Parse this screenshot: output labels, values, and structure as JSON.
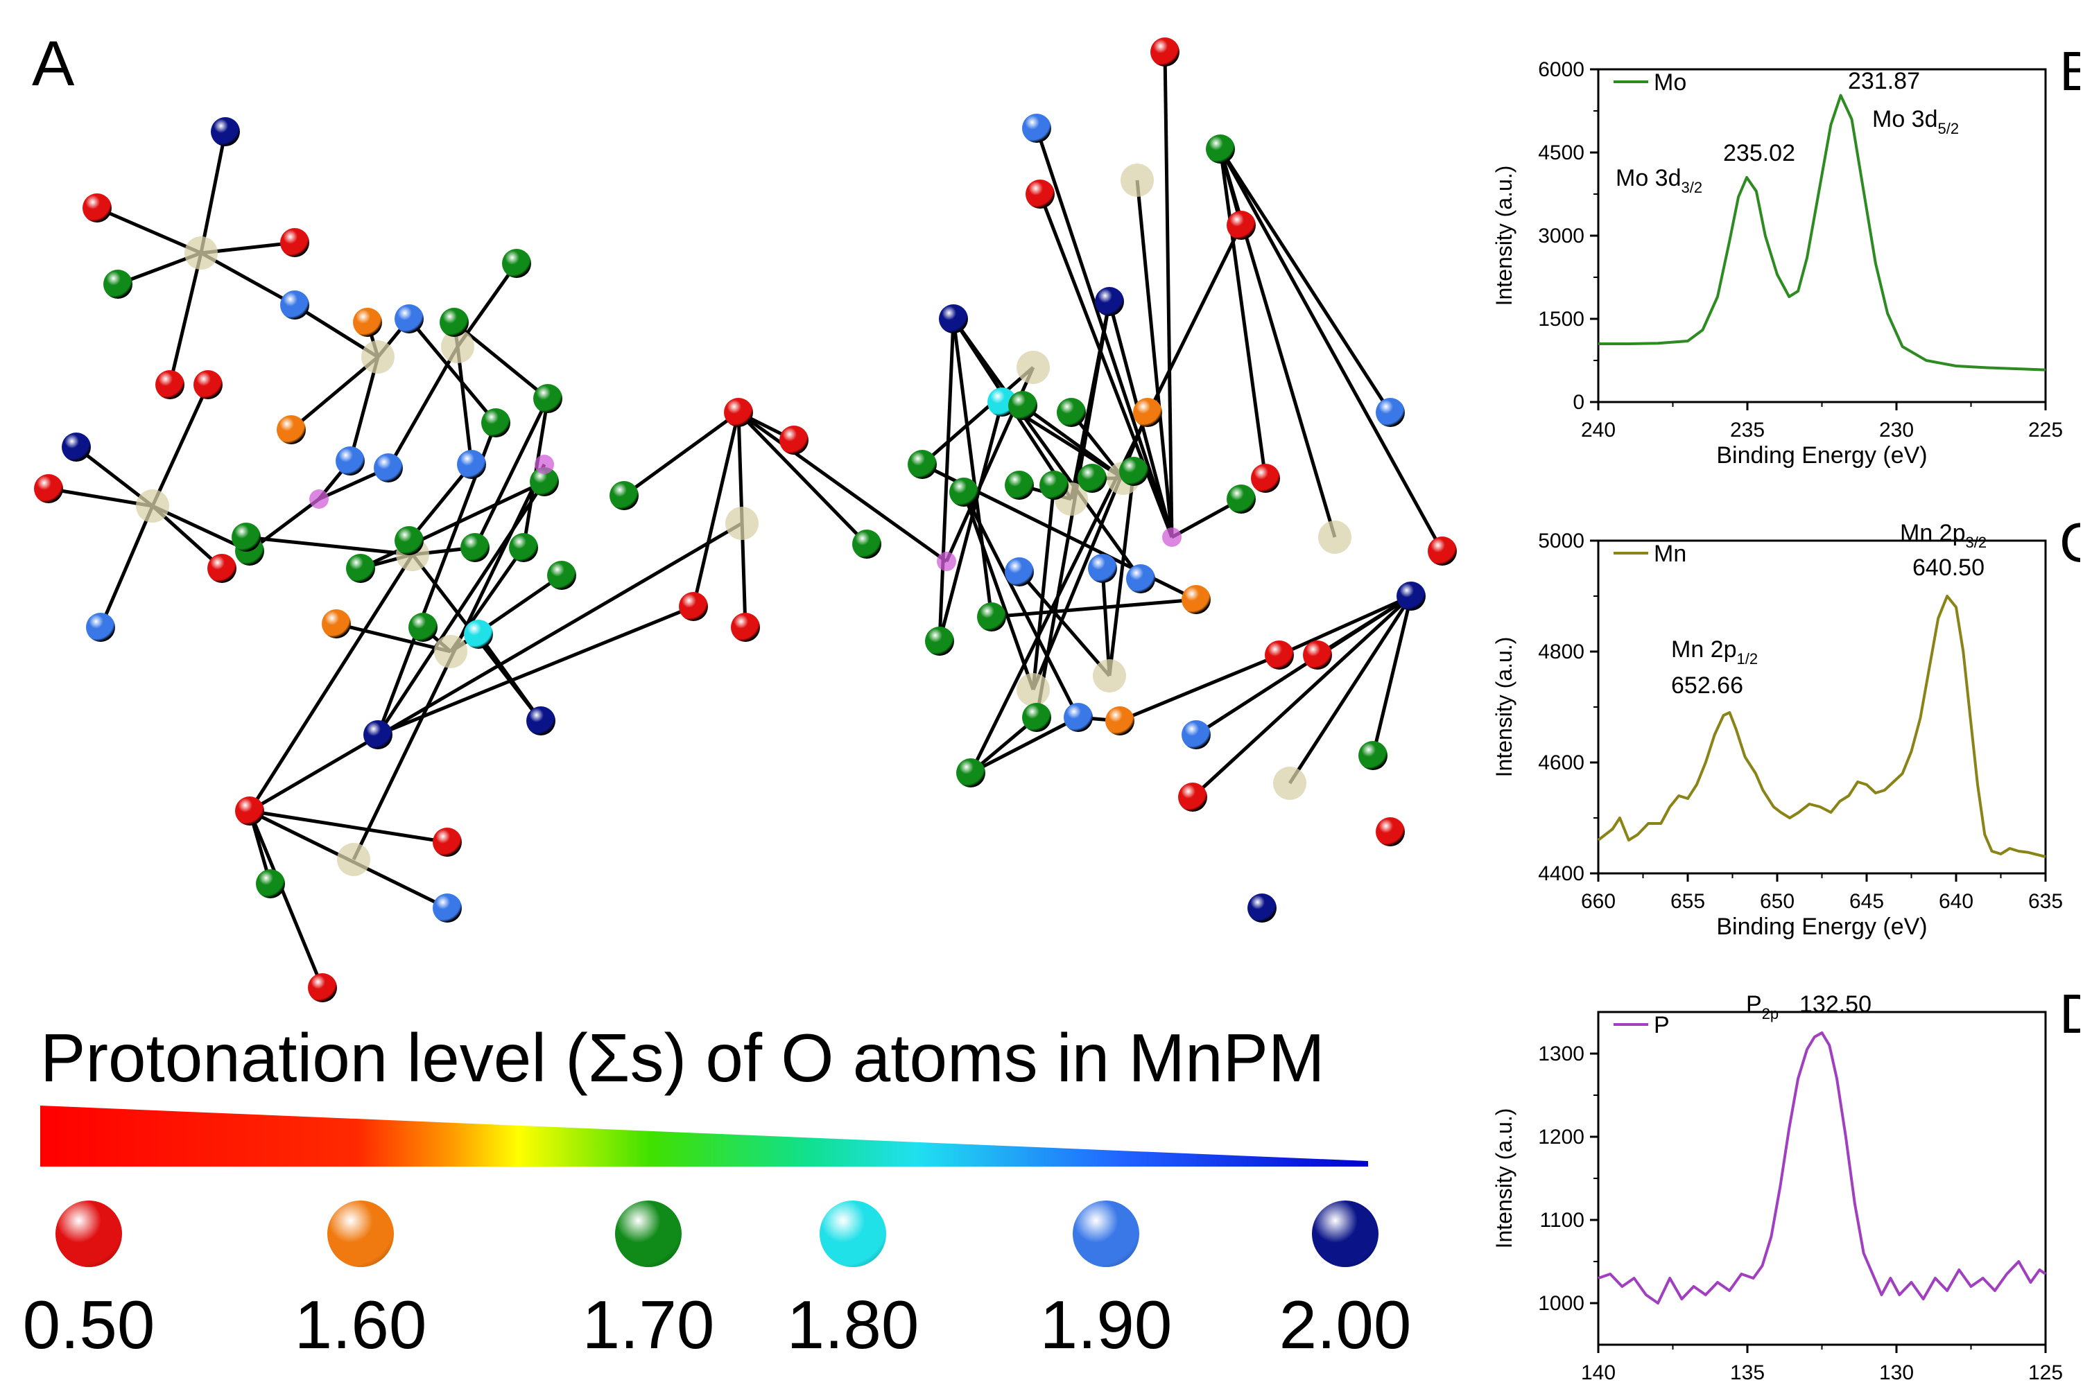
{
  "panel_a": {
    "letter": "A",
    "legend_title": "Protonation level (Σs) of O atoms in MnPM",
    "scale": [
      {
        "value": "0.50",
        "color": "#e01010"
      },
      {
        "value": "1.60",
        "color": "#f07a10"
      },
      {
        "value": "1.70",
        "color": "#108a18"
      },
      {
        "value": "1.80",
        "color": "#20e0e8"
      },
      {
        "value": "1.90",
        "color": "#3a78e8"
      },
      {
        "value": "2.00",
        "color": "#0a1488"
      }
    ],
    "colors": {
      "metal": "#d8d2a8",
      "phosphorus": "#d060d8",
      "bond": "#000000"
    }
  },
  "chart_data": [
    {
      "type": "line",
      "panel": "B",
      "xlabel": "Binding Energy (eV)",
      "ylabel": "Intensity (a.u.)",
      "xlim": [
        240,
        225
      ],
      "ylim": [
        0,
        6000
      ],
      "x_ticks": [
        240,
        235,
        230,
        225
      ],
      "y_ticks": [
        0,
        1500,
        3000,
        4500,
        6000
      ],
      "legend_position": "top-left",
      "series": [
        {
          "name": "Mo",
          "color": "#2e8b22",
          "points": [
            [
              240,
              1050
            ],
            [
              239,
              1050
            ],
            [
              238,
              1060
            ],
            [
              237,
              1100
            ],
            [
              236.5,
              1300
            ],
            [
              236,
              1900
            ],
            [
              235.6,
              2900
            ],
            [
              235.3,
              3700
            ],
            [
              235.02,
              4050
            ],
            [
              234.7,
              3800
            ],
            [
              234.4,
              3000
            ],
            [
              234,
              2300
            ],
            [
              233.6,
              1900
            ],
            [
              233.3,
              2000
            ],
            [
              233,
              2600
            ],
            [
              232.6,
              3800
            ],
            [
              232.2,
              5000
            ],
            [
              231.87,
              5530
            ],
            [
              231.5,
              5100
            ],
            [
              231.1,
              3800
            ],
            [
              230.7,
              2500
            ],
            [
              230.3,
              1600
            ],
            [
              229.8,
              1000
            ],
            [
              229,
              750
            ],
            [
              228,
              650
            ],
            [
              227,
              620
            ],
            [
              226,
              600
            ],
            [
              225,
              580
            ]
          ]
        }
      ],
      "annotations": [
        {
          "text": "231.87"
        },
        {
          "text": "235.02"
        },
        {
          "main": "Mo 3d",
          "sub": "3/2"
        },
        {
          "main": "Mo 3d",
          "sub": "5/2"
        }
      ]
    },
    {
      "type": "line",
      "panel": "C",
      "xlabel": "Binding Energy (eV)",
      "ylabel": "Intensity (a.u.)",
      "xlim": [
        660,
        635
      ],
      "ylim": [
        4400,
        5000
      ],
      "x_ticks": [
        660,
        655,
        650,
        645,
        640,
        635
      ],
      "y_ticks": [
        4400,
        4600,
        4800,
        5000
      ],
      "legend_position": "top-left",
      "series": [
        {
          "name": "Mn",
          "color": "#8a8418",
          "points": [
            [
              660,
              4460
            ],
            [
              659.2,
              4480
            ],
            [
              658.8,
              4500
            ],
            [
              658.3,
              4460
            ],
            [
              657.8,
              4470
            ],
            [
              657.2,
              4490
            ],
            [
              656.5,
              4490
            ],
            [
              656,
              4520
            ],
            [
              655.5,
              4540
            ],
            [
              655,
              4535
            ],
            [
              654.5,
              4560
            ],
            [
              654,
              4600
            ],
            [
              653.5,
              4650
            ],
            [
              653,
              4685
            ],
            [
              652.66,
              4690
            ],
            [
              652.3,
              4660
            ],
            [
              651.8,
              4610
            ],
            [
              651.2,
              4580
            ],
            [
              650.8,
              4550
            ],
            [
              650.2,
              4520
            ],
            [
              649.8,
              4510
            ],
            [
              649.3,
              4500
            ],
            [
              648.8,
              4510
            ],
            [
              648.2,
              4525
            ],
            [
              647.6,
              4520
            ],
            [
              647,
              4510
            ],
            [
              646.5,
              4530
            ],
            [
              646,
              4540
            ],
            [
              645.5,
              4565
            ],
            [
              645,
              4560
            ],
            [
              644.5,
              4545
            ],
            [
              644,
              4550
            ],
            [
              643.5,
              4565
            ],
            [
              643,
              4580
            ],
            [
              642.5,
              4620
            ],
            [
              642,
              4680
            ],
            [
              641.5,
              4770
            ],
            [
              641,
              4860
            ],
            [
              640.5,
              4900
            ],
            [
              640,
              4880
            ],
            [
              639.6,
              4800
            ],
            [
              639.2,
              4680
            ],
            [
              638.8,
              4560
            ],
            [
              638.4,
              4470
            ],
            [
              638,
              4440
            ],
            [
              637.5,
              4435
            ],
            [
              637,
              4445
            ],
            [
              636.5,
              4440
            ],
            [
              636,
              4438
            ],
            [
              635,
              4430
            ]
          ]
        }
      ],
      "annotations": [
        {
          "main": "Mn 2p",
          "sub": "3/2"
        },
        {
          "text": "640.50"
        },
        {
          "main": "Mn 2p",
          "sub": "1/2"
        },
        {
          "text": "652.66"
        }
      ]
    },
    {
      "type": "line",
      "panel": "D",
      "xlabel": "Binding Energy (eV)",
      "ylabel": "Intensity (a.u.)",
      "xlim": [
        140,
        125
      ],
      "ylim": [
        950,
        1350
      ],
      "x_ticks": [
        140,
        135,
        130,
        125
      ],
      "y_ticks": [
        1000,
        1100,
        1200,
        1300
      ],
      "legend_position": "top-left",
      "series": [
        {
          "name": "P",
          "color": "#a040c0",
          "points": [
            [
              140,
              1030
            ],
            [
              139.6,
              1035
            ],
            [
              139.2,
              1020
            ],
            [
              138.8,
              1030
            ],
            [
              138.4,
              1010
            ],
            [
              138,
              1000
            ],
            [
              137.6,
              1030
            ],
            [
              137.2,
              1005
            ],
            [
              136.8,
              1020
            ],
            [
              136.4,
              1010
            ],
            [
              136,
              1025
            ],
            [
              135.6,
              1015
            ],
            [
              135.2,
              1035
            ],
            [
              134.8,
              1030
            ],
            [
              134.5,
              1045
            ],
            [
              134.2,
              1080
            ],
            [
              133.9,
              1140
            ],
            [
              133.6,
              1210
            ],
            [
              133.3,
              1270
            ],
            [
              133,
              1305
            ],
            [
              132.75,
              1320
            ],
            [
              132.5,
              1325
            ],
            [
              132.25,
              1310
            ],
            [
              132,
              1270
            ],
            [
              131.7,
              1200
            ],
            [
              131.4,
              1120
            ],
            [
              131.1,
              1060
            ],
            [
              130.8,
              1035
            ],
            [
              130.5,
              1010
            ],
            [
              130.2,
              1030
            ],
            [
              129.9,
              1010
            ],
            [
              129.5,
              1025
            ],
            [
              129.1,
              1005
            ],
            [
              128.7,
              1030
            ],
            [
              128.3,
              1015
            ],
            [
              127.9,
              1040
            ],
            [
              127.5,
              1020
            ],
            [
              127.1,
              1030
            ],
            [
              126.7,
              1015
            ],
            [
              126.3,
              1035
            ],
            [
              125.9,
              1050
            ],
            [
              125.5,
              1025
            ],
            [
              125.2,
              1040
            ],
            [
              125,
              1035
            ]
          ]
        }
      ],
      "annotations": [
        {
          "main": "P",
          "sub": "2p"
        },
        {
          "text": "132.50"
        }
      ]
    }
  ]
}
